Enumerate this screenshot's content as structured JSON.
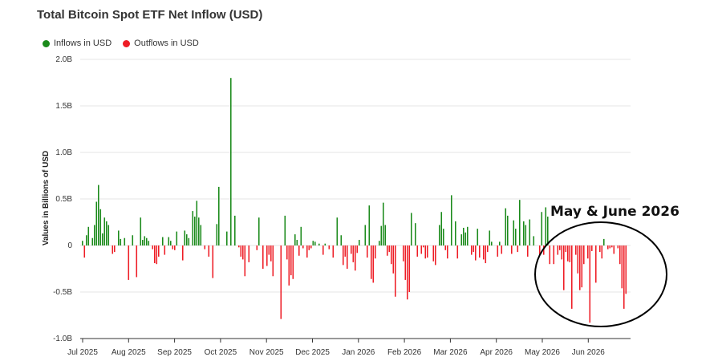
{
  "chart_data": {
    "type": "bar",
    "title": "Total Bitcoin Spot ETF Net Inflow (USD)",
    "ylabel": "Values in Billions of USD",
    "xlabel": "",
    "ylim": [
      -1.0,
      2.0
    ],
    "yticks": [
      {
        "value": 2.0,
        "label": "2.0B"
      },
      {
        "value": 1.5,
        "label": "1.5B"
      },
      {
        "value": 1.0,
        "label": "1.0B"
      },
      {
        "value": 0.5,
        "label": "0.5B"
      },
      {
        "value": 0,
        "label": "0"
      },
      {
        "value": -0.5,
        "label": "-0.5B"
      },
      {
        "value": -1.0,
        "label": "-1.0B"
      }
    ],
    "xticks": [
      "Jul 2025",
      "Aug 2025",
      "Sep 2025",
      "Oct 2025",
      "Nov 2025",
      "Dec 2025",
      "Jan 2026",
      "Feb 2026",
      "Mar 2026",
      "Apr 2026",
      "May 2026",
      "Jun 2026"
    ],
    "legend": [
      {
        "name": "Inflows in USD",
        "color": "#1a8a1a"
      },
      {
        "name": "Outflows in USD",
        "color": "#ee1c25"
      }
    ],
    "legend_position": "top-left",
    "grid": true,
    "colors": {
      "inflow": "#1a8a1a",
      "outflow": "#ee1c25"
    },
    "annotation": {
      "text": "May & June 2026",
      "shape": "ellipse"
    },
    "values": [
      0.05,
      -0.13,
      0.11,
      0.2,
      0,
      0.08,
      0.22,
      0.47,
      0.65,
      0.39,
      0.13,
      0.3,
      0.26,
      0.22,
      0,
      -0.09,
      -0.07,
      0,
      0.16,
      0.07,
      0,
      0.08,
      0,
      -0.37,
      0,
      0.11,
      0,
      -0.34,
      0,
      0.3,
      0.06,
      0.1,
      0.08,
      0.05,
      0,
      -0.04,
      -0.19,
      -0.2,
      -0.12,
      0,
      0.09,
      -0.1,
      0,
      0.09,
      0.05,
      -0.04,
      -0.05,
      0.15,
      0,
      0,
      -0.16,
      0.16,
      0.12,
      0.08,
      0,
      0.37,
      0.31,
      0.48,
      0.3,
      0.22,
      0,
      -0.04,
      0,
      -0.12,
      0,
      -0.35,
      0,
      0.23,
      0.63,
      0,
      0,
      0,
      0.15,
      0,
      1.8,
      0,
      0.32,
      0,
      -0.02,
      -0.12,
      -0.15,
      -0.33,
      0,
      -0.18,
      0,
      0,
      0,
      -0.05,
      0.3,
      0,
      -0.25,
      0,
      -0.22,
      -0.1,
      -0.17,
      -0.33,
      0,
      0,
      0,
      -0.79,
      0,
      0.32,
      -0.15,
      -0.43,
      -0.32,
      -0.36,
      0.12,
      0.06,
      -0.11,
      0.2,
      -0.03,
      0,
      -0.13,
      -0.05,
      -0.03,
      0.05,
      0.04,
      0,
      0.02,
      0,
      -0.1,
      0.02,
      0,
      -0.04,
      0,
      -0.13,
      0,
      0.3,
      0,
      0.11,
      -0.21,
      -0.12,
      -0.25,
      0,
      -0.09,
      -0.18,
      -0.27,
      -0.08,
      0.06,
      0,
      0,
      0.22,
      -0.13,
      0.43,
      -0.36,
      -0.4,
      -0.14,
      0,
      0.05,
      0.21,
      0.46,
      0.22,
      -0.11,
      -0.07,
      -0.2,
      -0.3,
      -0.55,
      0,
      0,
      0,
      -0.17,
      -0.37,
      -0.58,
      -0.5,
      0.35,
      0,
      0.24,
      -0.12,
      0,
      -0.09,
      -0.02,
      -0.14,
      -0.13,
      0,
      0,
      -0.17,
      -0.21,
      0,
      0.22,
      0.36,
      0.18,
      -0.05,
      -0.14,
      0,
      0.54,
      0,
      0.26,
      -0.14,
      0,
      0.12,
      0.19,
      0.14,
      0.2,
      0,
      -0.1,
      -0.07,
      -0.16,
      0.18,
      -0.13,
      0,
      -0.15,
      -0.19,
      -0.07,
      0.16,
      0.04,
      0,
      0,
      -0.12,
      0.04,
      -0.09,
      0,
      0.4,
      0.32,
      0,
      -0.09,
      0.27,
      0.18,
      -0.07,
      0.49,
      0,
      0.26,
      0.22,
      -0.12,
      0.28,
      0,
      0.1,
      0,
      0,
      -0.1,
      0.36,
      -0.1,
      0.41,
      0.31,
      -0.2,
      0,
      -0.2,
      0,
      -0.1,
      -0.05,
      -0.15,
      -0.48,
      -0.07,
      -0.17,
      -0.18,
      -0.68,
      0,
      -0.1,
      -0.3,
      -0.48,
      -0.45,
      -0.2,
      0,
      -0.14,
      -0.83,
      -0.06,
      0,
      -0.4,
      0,
      -0.07,
      -0.14,
      0.07,
      0,
      -0.04,
      -0.03,
      -0.02,
      -0.09,
      0,
      -0.03,
      -0.2,
      -0.46,
      -0.68,
      -0.52
    ]
  }
}
